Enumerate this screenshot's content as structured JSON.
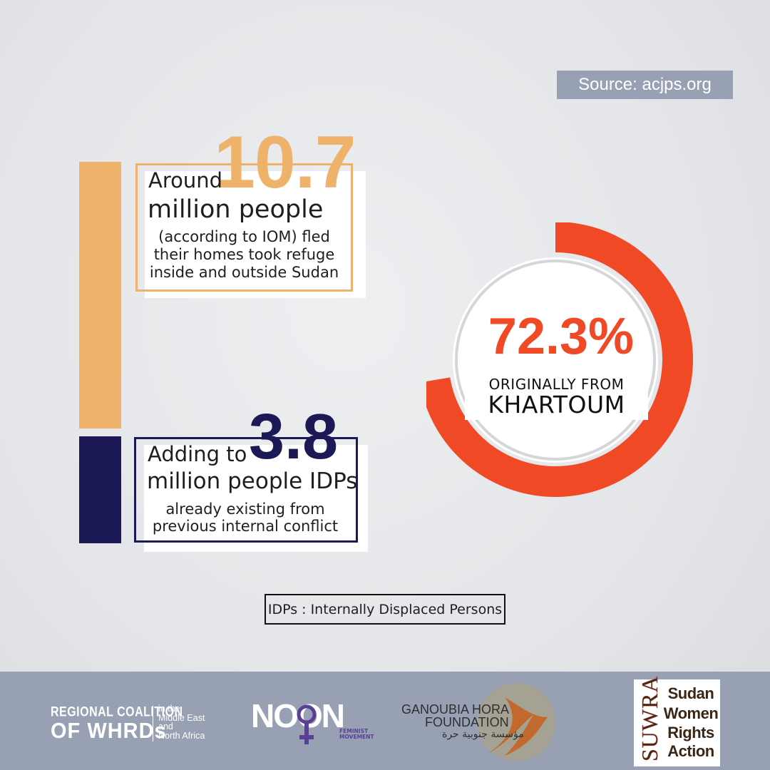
{
  "source": "Source: acjps.org",
  "card1": {
    "prefix": "Around",
    "number": "10.7",
    "line2": "million people",
    "desc": [
      "(according to IOM) fled",
      "their homes took refuge",
      "inside and outside Sudan"
    ]
  },
  "card2": {
    "prefix": "Adding to",
    "number": "3.8",
    "line2": "million people IDPs",
    "desc": [
      "already existing from",
      "previous internal conflict"
    ]
  },
  "donut": {
    "percent_label": "72.3%",
    "percent_value": 72.3,
    "line1": "ORIGINALLY FROM",
    "line2": "KHARTOUM"
  },
  "footnote": "IDPs : Internally Displaced Persons",
  "colors": {
    "orange": "#efb26b",
    "navy": "#1b1a57",
    "red": "#ef4926",
    "footer": "#98a1b3",
    "noon_purple": "#5a3f96"
  },
  "footer": {
    "coalition": {
      "line1": "REGIONAL COALITION",
      "line2": "OF WHRDs",
      "side": [
        "in the",
        "Middle East",
        "and",
        "North Africa"
      ]
    },
    "noon": {
      "name": "NOON",
      "sub": [
        "FEMINIST",
        "MOVEMENT"
      ]
    },
    "ganoubia": {
      "line1": "GANOUBIA HORA",
      "line2": "FOUNDATION",
      "arabic": "مؤسسة جنوبية حرة"
    },
    "suwra": {
      "vertical": "SUWRA",
      "words": [
        "Sudan",
        "Women",
        "Rights",
        "Action"
      ]
    }
  }
}
